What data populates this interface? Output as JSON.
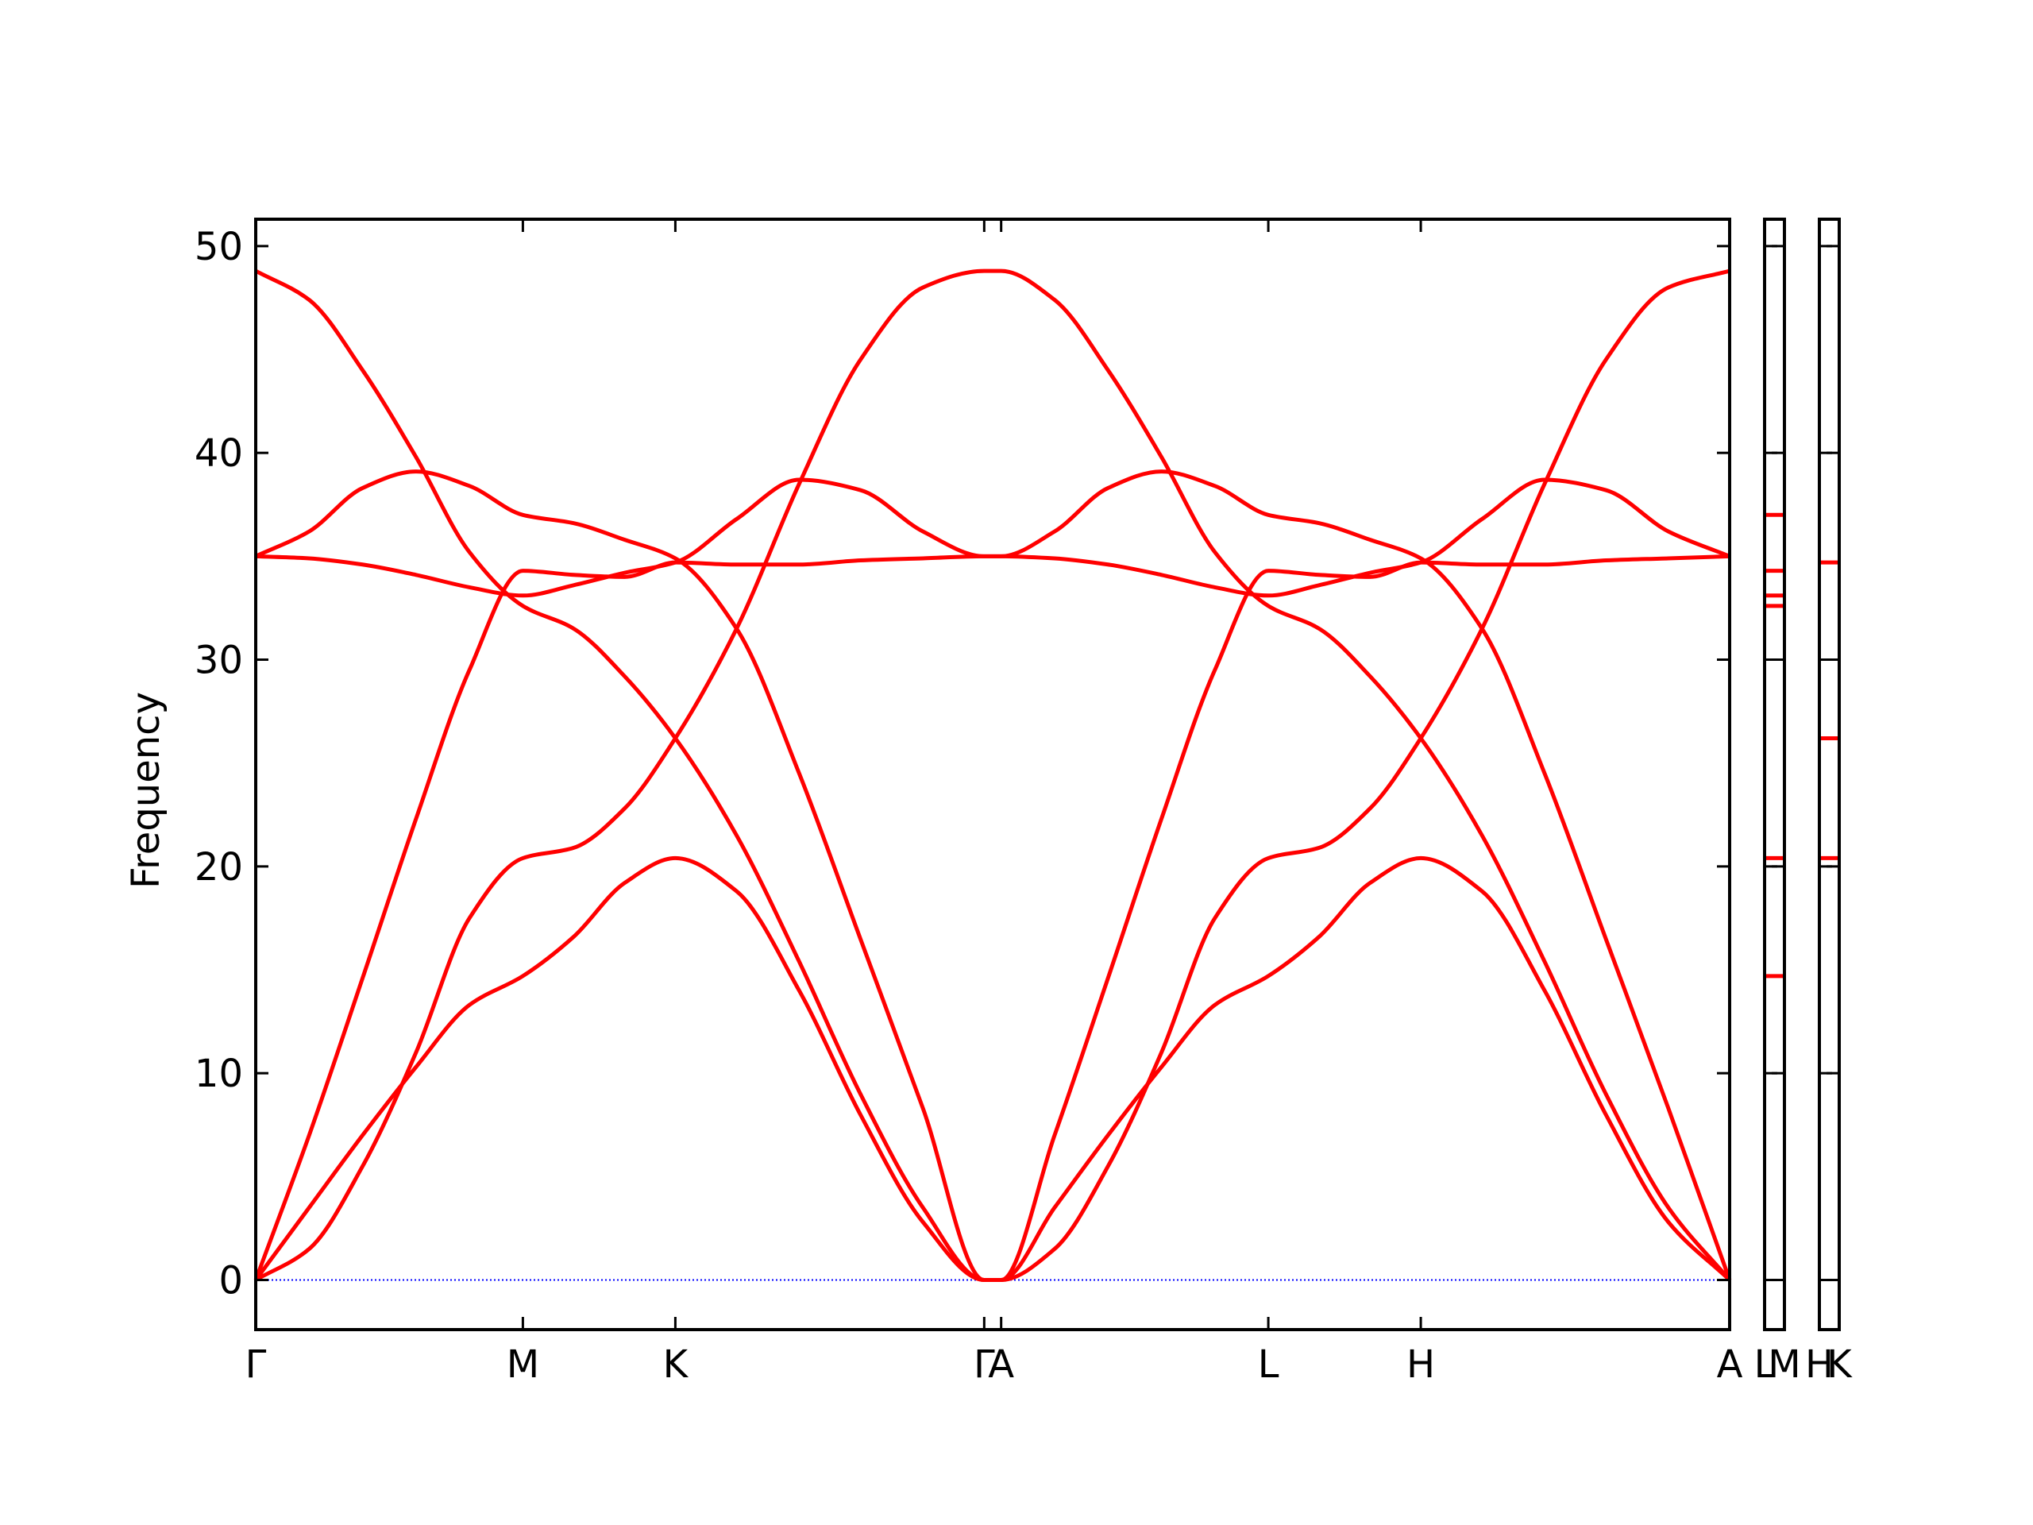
{
  "chart_data": [
    {
      "type": "line",
      "ylabel": "Frequency",
      "x": [
        0,
        41,
        82,
        123,
        164,
        205,
        244,
        283,
        322,
        369,
        417,
        464,
        512,
        559,
        572,
        613,
        654,
        695,
        736,
        777,
        816,
        855,
        894,
        941,
        989,
        1036,
        1084,
        1131
      ],
      "xlim": [
        0,
        1131
      ],
      "xticks": [
        {
          "value": 0,
          "label": "Γ"
        },
        {
          "value": 205,
          "label": "M"
        },
        {
          "value": 322,
          "label": "K"
        },
        {
          "value": 559,
          "label": "Γ"
        },
        {
          "value": 572,
          "label": "A"
        },
        {
          "value": 777,
          "label": "L"
        },
        {
          "value": 894,
          "label": "H"
        },
        {
          "value": 1131,
          "label": "A"
        }
      ],
      "ylim": [
        -2.4,
        51.3
      ],
      "yticks": [
        0,
        10,
        20,
        30,
        40,
        50
      ],
      "ytick_labels": true,
      "hline": 0,
      "hline_color": "#0000ff",
      "series": [
        {
          "color": "#ff0000",
          "values": [
            48.8,
            47.4,
            44.0,
            39.8,
            35.2,
            32.6,
            31.5,
            29.2,
            26.2,
            21.5,
            15.4,
            9.0,
            3.5,
            0,
            0,
            7.0,
            14.6,
            22.3,
            29.5,
            34.3,
            34.1,
            34.0,
            34.7,
            34.6,
            34.6,
            34.8,
            34.9,
            35.0
          ]
        },
        {
          "color": "#ff0000",
          "values": [
            35.0,
            36.2,
            38.3,
            39.1,
            38.4,
            37.0,
            36.6,
            35.8,
            34.9,
            31.5,
            24.5,
            16.5,
            8.3,
            0,
            0,
            1.5,
            5.5,
            11.0,
            17.5,
            20.4,
            20.9,
            22.8,
            26.2,
            31.5,
            38.5,
            44.5,
            48.0,
            48.8
          ]
        },
        {
          "color": "#ff0000",
          "values": [
            35.0,
            34.9,
            34.6,
            34.1,
            33.5,
            33.1,
            33.6,
            34.2,
            34.7,
            36.8,
            38.7,
            38.2,
            36.2,
            35.0,
            35.0,
            36.2,
            38.3,
            39.1,
            38.4,
            37.0,
            36.6,
            35.8,
            34.9,
            31.5,
            24.5,
            16.5,
            8.3,
            0
          ]
        },
        {
          "color": "#ff0000",
          "values": [
            0,
            7.0,
            14.6,
            22.3,
            29.5,
            34.3,
            34.1,
            34.0,
            34.7,
            34.6,
            34.6,
            34.8,
            34.9,
            35.0,
            35.0,
            34.9,
            34.6,
            34.1,
            33.5,
            33.1,
            33.6,
            34.2,
            34.7,
            36.8,
            38.7,
            38.2,
            36.2,
            35.0
          ]
        },
        {
          "color": "#ff0000",
          "values": [
            0,
            1.5,
            5.5,
            11.0,
            17.5,
            20.4,
            20.9,
            22.8,
            26.2,
            31.5,
            38.5,
            44.5,
            48.0,
            48.8,
            48.8,
            47.4,
            44.0,
            39.8,
            35.2,
            32.6,
            31.5,
            29.2,
            26.2,
            21.5,
            15.4,
            9.0,
            3.5,
            0
          ]
        },
        {
          "color": "#ff0000",
          "values": [
            0,
            3.5,
            7.0,
            10.3,
            13.3,
            14.7,
            16.6,
            19.2,
            20.4,
            18.8,
            14.0,
            8.0,
            2.8,
            0,
            0,
            3.5,
            7.0,
            10.3,
            13.3,
            14.7,
            16.6,
            19.2,
            20.4,
            18.8,
            14.0,
            8.0,
            2.8,
            0
          ]
        }
      ]
    },
    {
      "type": "line",
      "x": [
        0,
        1
      ],
      "xlim": [
        0,
        1
      ],
      "xticks": [
        {
          "value": 0,
          "label": "L"
        },
        {
          "value": 1,
          "label": "M"
        }
      ],
      "ylim": [
        -2.4,
        51.3
      ],
      "yticks": [
        0,
        10,
        20,
        30,
        40,
        50
      ],
      "ytick_labels": false,
      "hline": 0,
      "hline_color": "#0000ff",
      "series": [
        {
          "color": "#ff0000",
          "values": [
            37.0,
            37.0
          ]
        },
        {
          "color": "#ff0000",
          "values": [
            34.3,
            34.3
          ]
        },
        {
          "color": "#ff0000",
          "values": [
            33.1,
            33.1
          ]
        },
        {
          "color": "#ff0000",
          "values": [
            32.6,
            32.6
          ]
        },
        {
          "color": "#ff0000",
          "values": [
            20.4,
            20.4
          ]
        },
        {
          "color": "#ff0000",
          "values": [
            14.7,
            14.7
          ]
        }
      ]
    },
    {
      "type": "line",
      "x": [
        0,
        1
      ],
      "xlim": [
        0,
        1
      ],
      "xticks": [
        {
          "value": 0,
          "label": "H"
        },
        {
          "value": 1,
          "label": "K"
        }
      ],
      "ylim": [
        -2.4,
        51.3
      ],
      "yticks": [
        0,
        10,
        20,
        30,
        40,
        50
      ],
      "ytick_labels": false,
      "hline": 0,
      "hline_color": "#0000ff",
      "series": [
        {
          "color": "#ff0000",
          "values": [
            34.7,
            34.7
          ]
        },
        {
          "color": "#ff0000",
          "values": [
            26.2,
            26.2
          ]
        },
        {
          "color": "#ff0000",
          "values": [
            20.4,
            20.4
          ]
        }
      ]
    }
  ]
}
